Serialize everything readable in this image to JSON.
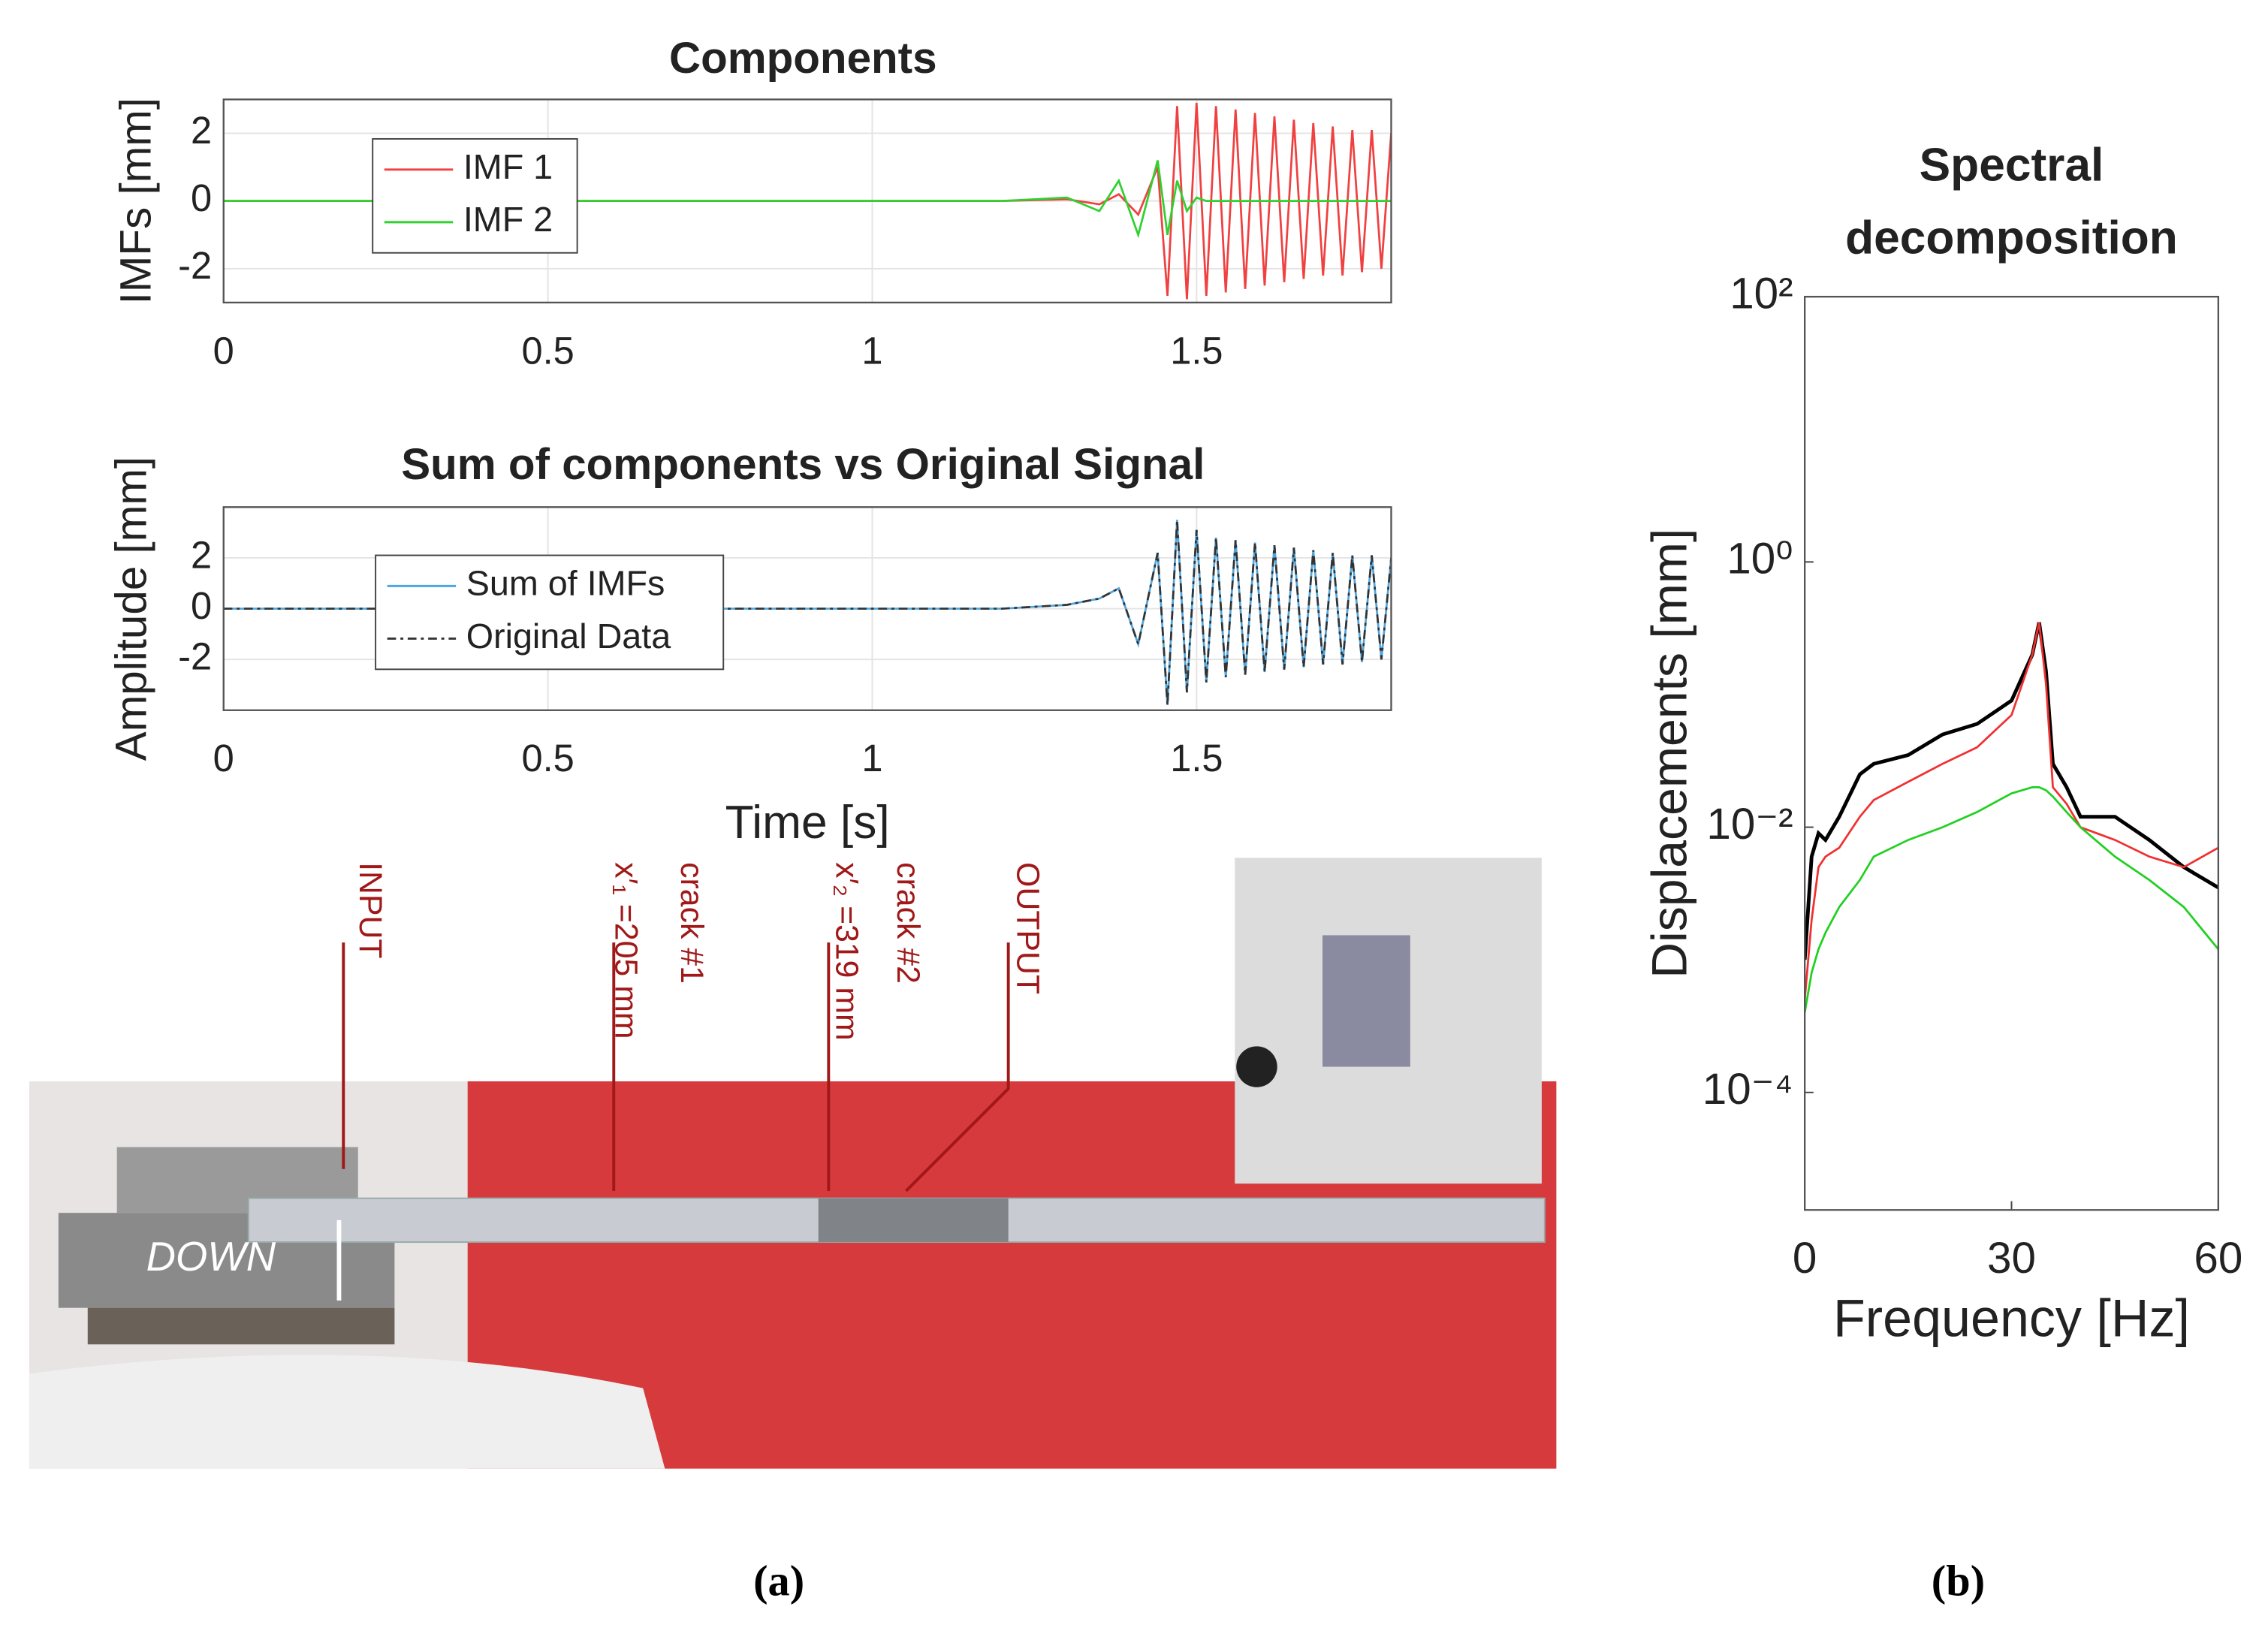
{
  "chart_data": [
    {
      "type": "line",
      "title": "Components",
      "ylabel": "IMFs [mm]",
      "x": [
        0,
        1.2,
        1.3,
        1.35,
        1.38,
        1.41,
        1.44,
        1.455,
        1.47,
        1.485,
        1.5,
        1.515,
        1.53,
        1.545,
        1.56,
        1.575,
        1.59,
        1.605,
        1.62,
        1.635,
        1.65,
        1.665,
        1.68,
        1.695,
        1.71,
        1.725,
        1.74,
        1.755,
        1.77,
        1.785,
        1.8
      ],
      "series": [
        {
          "name": "IMF 1",
          "color": "#f04040",
          "values": [
            0,
            0,
            0.05,
            -0.1,
            0.2,
            -0.4,
            1.0,
            -2.8,
            2.8,
            -2.9,
            2.9,
            -2.8,
            2.8,
            -2.7,
            2.7,
            -2.6,
            2.6,
            -2.5,
            2.5,
            -2.4,
            2.4,
            -2.3,
            2.3,
            -2.2,
            2.2,
            -2.2,
            2.1,
            -2.1,
            2.1,
            -2.0,
            2.0
          ]
        },
        {
          "name": "IMF 2",
          "color": "#30d030",
          "values": [
            0,
            0,
            0.1,
            -0.3,
            0.6,
            -1.0,
            1.2,
            -1.0,
            0.6,
            -0.3,
            0.1,
            0,
            0,
            0,
            0,
            0,
            0,
            0,
            0,
            0,
            0,
            0,
            0,
            0,
            0,
            0,
            0,
            0,
            0,
            0,
            0
          ]
        }
      ],
      "xlim": [
        0,
        1.8
      ],
      "xticks": [
        0,
        0.5,
        1,
        1.5
      ],
      "ylim": [
        -3,
        3
      ],
      "yticks": [
        -2,
        0,
        2
      ],
      "grid": true
    },
    {
      "type": "line",
      "title": "Sum of components vs Original Signal",
      "ylabel": "Amplitude [mm]",
      "xlabel": "Time [s]",
      "x": [
        0,
        1.2,
        1.3,
        1.35,
        1.38,
        1.41,
        1.44,
        1.455,
        1.47,
        1.485,
        1.5,
        1.515,
        1.53,
        1.545,
        1.56,
        1.575,
        1.59,
        1.605,
        1.62,
        1.635,
        1.65,
        1.665,
        1.68,
        1.695,
        1.71,
        1.725,
        1.74,
        1.755,
        1.77,
        1.785,
        1.8
      ],
      "series": [
        {
          "name": "Sum of IMFs",
          "color": "#4da6e0",
          "line_style": "solid",
          "values": [
            0,
            0,
            0.15,
            0.4,
            0.8,
            -1.4,
            2.2,
            -3.8,
            3.5,
            -3.3,
            3.1,
            -2.9,
            2.8,
            -2.7,
            2.7,
            -2.6,
            2.6,
            -2.5,
            2.5,
            -2.4,
            2.4,
            -2.3,
            2.3,
            -2.2,
            2.2,
            -2.2,
            2.1,
            -2.1,
            2.1,
            -2.0,
            2.0
          ]
        },
        {
          "name": "Original Data",
          "color": "#333333",
          "line_style": "dash-dot",
          "values": [
            0,
            0,
            0.15,
            0.4,
            0.8,
            -1.4,
            2.2,
            -3.8,
            3.5,
            -3.3,
            3.1,
            -2.9,
            2.8,
            -2.7,
            2.7,
            -2.6,
            2.6,
            -2.5,
            2.5,
            -2.4,
            2.4,
            -2.3,
            2.3,
            -2.2,
            2.2,
            -2.2,
            2.1,
            -2.1,
            2.1,
            -2.0,
            2.0
          ]
        }
      ],
      "xlim": [
        0,
        1.8
      ],
      "xticks": [
        0,
        0.5,
        1,
        1.5
      ],
      "ylim": [
        -4,
        4
      ],
      "yticks": [
        -2,
        0,
        2
      ],
      "grid": true
    },
    {
      "type": "line",
      "title": [
        "Spectral",
        "decomposition"
      ],
      "ylabel": "Displacements [mm]",
      "xlabel": "Frequency [Hz]",
      "x": [
        0,
        1,
        2,
        3,
        5,
        8,
        10,
        15,
        20,
        25,
        30,
        33,
        34,
        35,
        36,
        38,
        40,
        45,
        50,
        55,
        60
      ],
      "series": [
        {
          "color": "#000000",
          "values": [
            0.001,
            0.006,
            0.009,
            0.008,
            0.012,
            0.025,
            0.03,
            0.035,
            0.05,
            0.06,
            0.09,
            0.2,
            0.35,
            0.15,
            0.03,
            0.02,
            0.012,
            0.012,
            0.008,
            0.005,
            0.0035
          ]
        },
        {
          "color": "#f03030",
          "values": [
            0.0005,
            0.002,
            0.005,
            0.006,
            0.007,
            0.012,
            0.016,
            0.022,
            0.03,
            0.04,
            0.07,
            0.2,
            0.35,
            0.12,
            0.02,
            0.015,
            0.01,
            0.008,
            0.006,
            0.005,
            0.007
          ]
        },
        {
          "color": "#20d020",
          "values": [
            0.0004,
            0.0008,
            0.0012,
            0.0016,
            0.0025,
            0.004,
            0.006,
            0.008,
            0.01,
            0.013,
            0.018,
            0.02,
            0.02,
            0.019,
            0.017,
            0.013,
            0.01,
            0.006,
            0.004,
            0.0025,
            0.0012
          ]
        }
      ],
      "xlim": [
        0,
        60
      ],
      "xticks": [
        0,
        30,
        60
      ],
      "ylim": [
        1.3e-05,
        100
      ],
      "log_y": true,
      "yticks": [
        {
          "value": 0.0001,
          "label": "10⁻⁴"
        },
        {
          "value": 0.01,
          "label": "10⁻²"
        },
        {
          "value": 1,
          "label": "10⁰"
        },
        {
          "value": 100,
          "label": "10²"
        }
      ],
      "grid": false
    }
  ],
  "photo": {
    "labels": [
      "INPUT",
      "x′₁ =205 mm",
      "crack #1",
      "x′₂ =319 mm",
      "crack #2",
      "OUTPUT"
    ],
    "down": "DOWN"
  },
  "captions": [
    "(a)",
    "(b)"
  ]
}
